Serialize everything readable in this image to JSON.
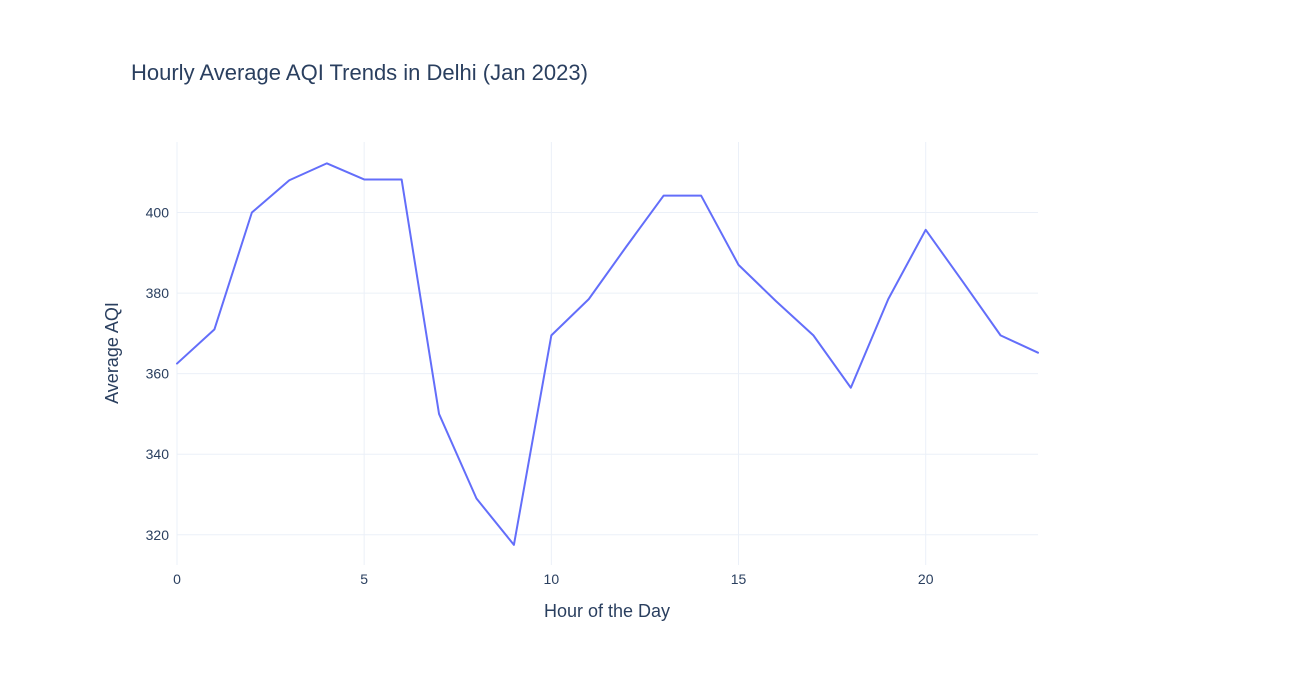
{
  "chart_data": {
    "type": "line",
    "title": "Hourly Average AQI Trends in Delhi (Jan 2023)",
    "xlabel": "Hour of the Day",
    "ylabel": "Average AQI",
    "x": [
      0,
      1,
      2,
      3,
      4,
      5,
      6,
      7,
      8,
      9,
      10,
      11,
      12,
      13,
      14,
      15,
      16,
      17,
      18,
      19,
      20,
      21,
      22,
      23
    ],
    "series": [
      {
        "values": [
          362.5,
          371,
          400,
          408,
          412.2,
          408.2,
          408.2,
          350,
          329,
          317.5,
          369.5,
          378.5,
          391.5,
          404.2,
          404.2,
          387,
          378,
          369.5,
          356.5,
          378.5,
          395.7,
          382.7,
          369.5,
          365.2
        ]
      }
    ],
    "xlim": [
      0,
      23
    ],
    "ylim": [
      312.5,
      417.5
    ],
    "xticks": [
      0,
      5,
      10,
      15,
      20
    ],
    "yticks": [
      320,
      340,
      360,
      380,
      400
    ],
    "grid": true,
    "line_color": "#636efa"
  }
}
